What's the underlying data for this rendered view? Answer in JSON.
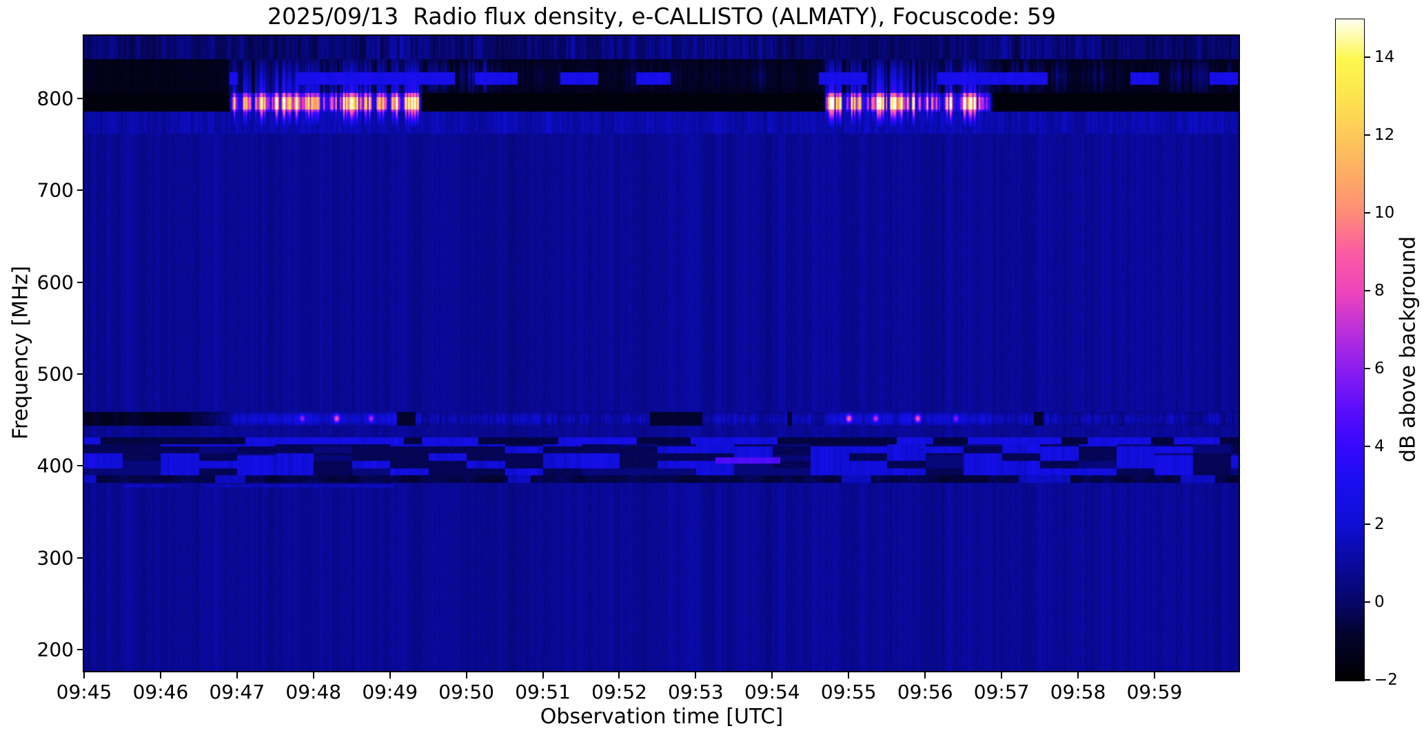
{
  "chart_data": {
    "type": "heatmap",
    "subtype": "radio-spectrogram",
    "title": "2025/09/13  Radio flux density, e-CALLISTO (ALMATY), Focuscode: 59",
    "xlabel": "Observation time [UTC]",
    "ylabel": "Frequency [MHz]",
    "x_ticks": [
      "09:45",
      "09:46",
      "09:47",
      "09:48",
      "09:49",
      "09:50",
      "09:51",
      "09:52",
      "09:53",
      "09:54",
      "09:55",
      "09:56",
      "09:57",
      "09:58",
      "09:59"
    ],
    "time_start_utc": "09:45",
    "time_span_minutes": 15.1,
    "y_ticks": [
      800,
      700,
      600,
      500,
      400,
      300,
      200
    ],
    "freq_range_mhz": [
      177,
      868
    ],
    "grid": false,
    "colorbar": {
      "label": "dB above background",
      "range_db": [
        -2,
        15
      ],
      "tick_values": [
        14,
        12,
        10,
        8,
        6,
        4,
        2,
        0,
        -2
      ],
      "tick_labels": [
        "14",
        "12",
        "10",
        "8",
        "6",
        "4",
        "2",
        "0",
        "−2"
      ],
      "colormap": "gnuplot2-like",
      "stops": [
        [
          0.0,
          [
            0,
            0,
            0
          ]
        ],
        [
          0.07,
          [
            3,
            3,
            46
          ]
        ],
        [
          0.118,
          [
            6,
            6,
            104
          ]
        ],
        [
          0.2,
          [
            11,
            11,
            178
          ]
        ],
        [
          0.235,
          [
            14,
            14,
            212
          ]
        ],
        [
          0.3,
          [
            26,
            14,
            240
          ]
        ],
        [
          0.353,
          [
            54,
            8,
            253
          ]
        ],
        [
          0.412,
          [
            92,
            13,
            250
          ]
        ],
        [
          0.47,
          [
            138,
            28,
            240
          ]
        ],
        [
          0.53,
          [
            187,
            48,
            218
          ]
        ],
        [
          0.588,
          [
            238,
            68,
            187
          ]
        ],
        [
          0.647,
          [
            252,
            91,
            164
          ]
        ],
        [
          0.706,
          [
            253,
            139,
            120
          ]
        ],
        [
          0.765,
          [
            253,
            172,
            100
          ]
        ],
        [
          0.824,
          [
            253,
            201,
            90
          ]
        ],
        [
          0.88,
          [
            253,
            227,
            78
          ]
        ],
        [
          0.94,
          [
            253,
            248,
            78
          ]
        ],
        [
          1.0,
          [
            255,
            255,
            240
          ]
        ]
      ]
    },
    "background": {
      "db_base": 0.85,
      "db_amp": 0.55
    },
    "features": [
      {
        "id": "top_speckle",
        "freq_mhz": [
          843,
          868
        ],
        "db_base": -0.6,
        "db_amp": 3.6,
        "note": "blue vertical-streak noise band at top of spectrum"
      },
      {
        "id": "upper_band",
        "freq_mhz": [
          806,
          843
        ],
        "db_base": -1.45,
        "db_amp": 4.6,
        "dark_until_min": 1.9,
        "strip_freq_mhz": [
          815,
          829
        ],
        "strip_db": 2.3,
        "note": "dark band with patchy blue streaks; nearly black before 09:46:54"
      },
      {
        "id": "black_stripe",
        "freq_mhz": [
          786,
          806
        ],
        "db_base": -1.85,
        "note": "near-black horizontal stripe across full duration"
      },
      {
        "id": "bursts",
        "freq_core_mhz": [
          788,
          802
        ],
        "freq_full_mhz": [
          784,
          806
        ],
        "freq_tail_mhz": [
          762,
          786
        ],
        "windows_min": [
          [
            1.88,
            4.43
          ],
          [
            9.66,
            11.9
          ]
        ],
        "windows_utc": [
          [
            "09:46:53",
            "09:49:26"
          ],
          [
            "09:54:40",
            "09:56:54"
          ]
        ],
        "db_peak": 15,
        "db_floor": 2.0,
        "note": "two intense striated emission bursts near 790 MHz reaching saturation (white)"
      },
      {
        "id": "sub_speckle",
        "freq_mhz": [
          762,
          786
        ],
        "db_base": 0.45,
        "db_amp": 1.7,
        "note": "blue speckle under the stripe; burst striations bleed downward"
      },
      {
        "id": "band_455",
        "freq_mhz": [
          444,
          459
        ],
        "db_base": 0.4,
        "db_amp": 2.3,
        "dark_until_min": 2.05,
        "burst_boost_db": 0.7,
        "hotspots_min": [
          2.85,
          3.3,
          3.75,
          10.0,
          10.35,
          10.9,
          11.4
        ],
        "hotspot_peak_db": [
          6.5,
          8.7,
          7.0,
          9.2,
          7.4,
          8.8,
          6.2
        ],
        "hotspot_center_mhz": 452,
        "note": "interference band ~455 MHz, black at start, pink hotspots during bursts"
      },
      {
        "id": "stripe_line",
        "freq_mhz": [
          424,
          431.5
        ],
        "seg_db": 1.9,
        "gap_db": -0.95,
        "note": "segmented blue/black horizontal line ~428 MHz"
      },
      {
        "id": "patch_band",
        "freq_mhz": [
          390,
          424
        ],
        "patch_db": 1.5,
        "dark_db": -0.6,
        "bright_segment": {
          "t_min": [
            8.25,
            9.1
          ],
          "freq_mhz": [
            403,
            410
          ],
          "db": 4.3
        },
        "note": "patchy blue rectangles (TETRA-like channels) 390-424 MHz"
      },
      {
        "id": "dark_line",
        "freq_mhz": [
          382,
          390
        ],
        "db_base": -0.85,
        "note": "dark speckled line below 390 MHz"
      },
      {
        "id": "faint_line",
        "freq_mhz": [
          375,
          382
        ],
        "t_min": [
          0.3,
          4.15
        ],
        "db": 1.5,
        "note": "faint blue dashes 09:45:20-09:49:10"
      }
    ]
  }
}
